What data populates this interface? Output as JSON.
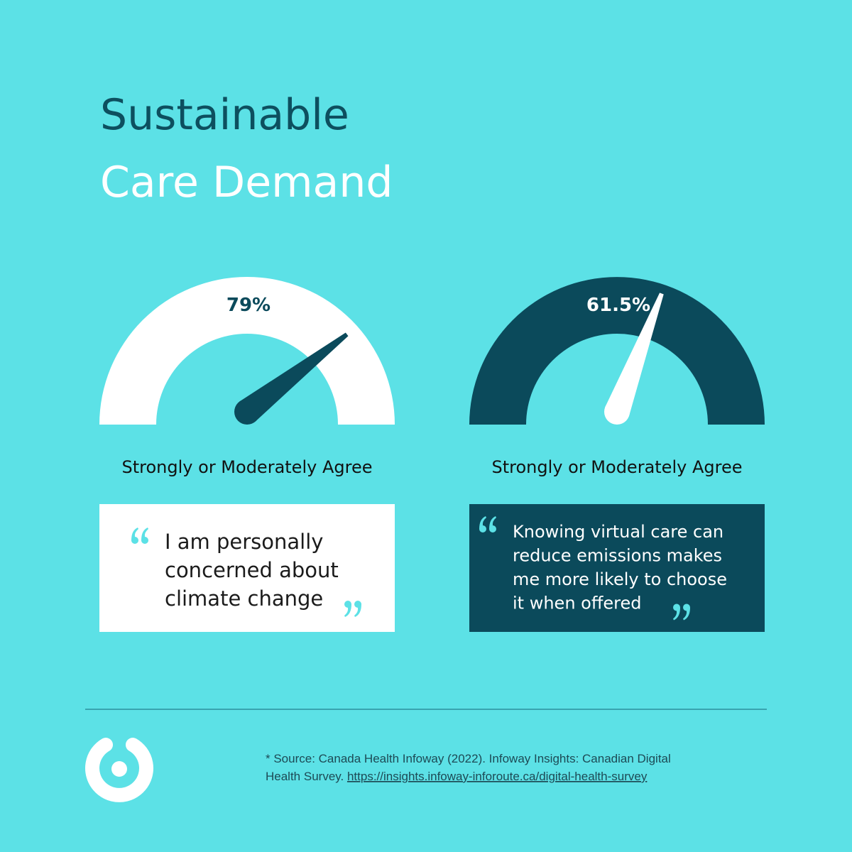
{
  "title": {
    "line1": "Sustainable",
    "line2": "Care Demand"
  },
  "chart_data": [
    {
      "type": "gauge",
      "values": [
        79
      ],
      "value_labels": [
        "79%"
      ],
      "ylim": [
        0,
        100
      ],
      "label": "Strongly or Moderately Agree",
      "color": "#ffffff",
      "needle_color": "#0b4a5b",
      "quote": [
        "I am personally",
        "concerned about",
        "climate change"
      ]
    },
    {
      "type": "gauge",
      "values": [
        61.5
      ],
      "value_labels": [
        "61.5%"
      ],
      "ylim": [
        0,
        100
      ],
      "label": "Strongly or Moderately Agree",
      "color": "#0b4a5b",
      "needle_color": "#ffffff",
      "quote": [
        "Knowing virtual care can",
        "reduce emissions makes",
        "me more likely to choose",
        "it when offered"
      ]
    }
  ],
  "footer": {
    "source_line1": "* Source: Canada Health Infoway (2022). Infoway Insights: Canadian Digital",
    "source_line2": "Health Survey.",
    "link": "https://insights.infoway-inforoute.ca/digital-health-survey"
  }
}
